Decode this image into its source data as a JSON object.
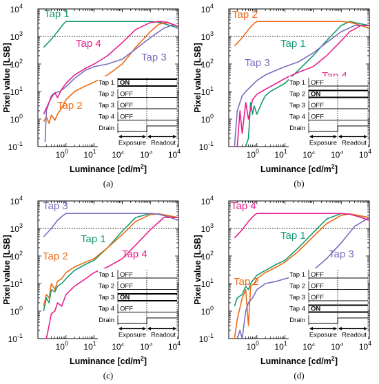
{
  "figure": {
    "panels": [
      {
        "sublabel": "(a)",
        "ylabel": "Pixel value [LSB]",
        "xlabel_main": "Luminance [cd/m",
        "xlabel_sup": "2",
        "xlabel_close": "]",
        "series_labels": [
          "Tap 1",
          "Tap 4",
          "Tap 3",
          "Tap 2"
        ],
        "inset": {
          "rows": [
            {
              "name": "Tap 1",
              "state": "ON"
            },
            {
              "name": "Tap 2",
              "state": "OFF"
            },
            {
              "name": "Tap 3",
              "state": "OFF"
            },
            {
              "name": "Tap 4",
              "state": "OFF"
            },
            {
              "name": "Drain",
              "state": ""
            }
          ],
          "exposure": "Exposure",
          "readout": "Readout"
        }
      },
      {
        "sublabel": "(b)",
        "ylabel": "Pixel value [LSB]",
        "xlabel_main": "Luminance [cd/m",
        "xlabel_sup": "2",
        "xlabel_close": "]",
        "series_labels": [
          "Tap 2",
          "Tap 1",
          "Tap 3",
          "Tap 4"
        ],
        "inset": {
          "rows": [
            {
              "name": "Tap 1",
              "state": "OFF"
            },
            {
              "name": "Tap 2",
              "state": "ON"
            },
            {
              "name": "Tap 3",
              "state": "OFF"
            },
            {
              "name": "Tap 4",
              "state": "OFF"
            },
            {
              "name": "Drain",
              "state": ""
            }
          ],
          "exposure": "Exposure",
          "readout": "Readout"
        }
      },
      {
        "sublabel": "(c)",
        "ylabel": "Pixel value [LSB]",
        "xlabel_main": "Luminance [cd/m",
        "xlabel_sup": "2",
        "xlabel_close": "]",
        "series_labels": [
          "Tap 3",
          "Tap 1",
          "Tap 2",
          "Tap 4"
        ],
        "inset": {
          "rows": [
            {
              "name": "Tap 1",
              "state": "OFF"
            },
            {
              "name": "Tap 2",
              "state": "OFF"
            },
            {
              "name": "Tap 3",
              "state": "ON"
            },
            {
              "name": "Tap 4",
              "state": "OFF"
            },
            {
              "name": "Drain",
              "state": ""
            }
          ],
          "exposure": "Exposure",
          "readout": "Readout"
        }
      },
      {
        "sublabel": "(d)",
        "ylabel": "Pixel value [LSB]",
        "xlabel_main": "Luminance [cd/m",
        "xlabel_sup": "2",
        "xlabel_close": "]",
        "series_labels": [
          "Tap 4",
          "Tap 1",
          "Tap 2",
          "Tap 3"
        ],
        "inset": {
          "rows": [
            {
              "name": "Tap 1",
              "state": "OFF"
            },
            {
              "name": "Tap 2",
              "state": "OFF"
            },
            {
              "name": "Tap 3",
              "state": "OFF"
            },
            {
              "name": "Tap 4",
              "state": "ON"
            },
            {
              "name": "Drain",
              "state": ""
            }
          ],
          "exposure": "Exposure",
          "readout": "Readout"
        }
      }
    ]
  },
  "chart_data": [
    {
      "type": "line",
      "xscale": "log",
      "yscale": "log",
      "xlim": [
        0.1,
        10000
      ],
      "ylim": [
        0.1,
        10000
      ],
      "x_ticks": [
        "10",
        "10",
        "10",
        "10",
        "10"
      ],
      "x_tick_exponents": [
        "0",
        "1",
        "2",
        "3",
        "4"
      ],
      "y_ticks": [
        "10",
        "10",
        "10",
        "10",
        "10",
        "10"
      ],
      "y_tick_exponents": [
        "-1",
        "0",
        "1",
        "2",
        "3",
        "4"
      ],
      "saturation_line": 1000,
      "series": [
        {
          "name": "Tap 1",
          "color": "#129a73",
          "role": "on",
          "x": [
            0.16,
            0.3,
            0.5,
            0.8,
            1,
            2,
            10,
            100,
            1000,
            2000,
            4000,
            10000
          ],
          "y": [
            400,
            800,
            1500,
            2800,
            3500,
            3500,
            3500,
            3500,
            3500,
            3300,
            2700,
            2000
          ]
        },
        {
          "name": "Tap 2",
          "color": "#ee6a12",
          "role": "off",
          "x": [
            0.16,
            0.2,
            0.25,
            0.3,
            0.4,
            0.5,
            0.7,
            1,
            2,
            5,
            10,
            30,
            100,
            300,
            1000,
            2000,
            4000,
            10000
          ],
          "y": [
            0.8,
            1.2,
            0.7,
            1.4,
            0.9,
            1.5,
            2.5,
            5,
            10,
            16,
            22,
            40,
            100,
            400,
            1500,
            2800,
            3200,
            2300
          ]
        },
        {
          "name": "Tap 3",
          "color": "#7b6bbd",
          "role": "off",
          "x": [
            0.18,
            0.2,
            0.25,
            0.3,
            0.4,
            0.6,
            1,
            2,
            5,
            10,
            30,
            100,
            300,
            1000,
            3000,
            6000,
            10000
          ],
          "y": [
            0.15,
            2,
            4,
            7,
            9,
            10,
            15,
            30,
            60,
            80,
            100,
            150,
            350,
            900,
            2000,
            2600,
            2300
          ]
        },
        {
          "name": "Tap 4",
          "color": "#e81e8c",
          "role": "off",
          "x": [
            0.16,
            0.2,
            0.25,
            0.3,
            0.4,
            0.5,
            0.7,
            1,
            2,
            5,
            10,
            30,
            100,
            300,
            1000,
            2000,
            4000,
            10000
          ],
          "y": [
            1.5,
            2.5,
            4,
            6,
            9,
            6,
            12,
            20,
            40,
            70,
            100,
            200,
            600,
            1800,
            3200,
            3500,
            3300,
            2300
          ]
        }
      ]
    },
    {
      "type": "line",
      "xscale": "log",
      "yscale": "log",
      "xlim": [
        0.1,
        10000
      ],
      "ylim": [
        0.1,
        10000
      ],
      "x_ticks": [
        "10",
        "10",
        "10",
        "10",
        "10"
      ],
      "x_tick_exponents": [
        "0",
        "1",
        "2",
        "3",
        "4"
      ],
      "y_ticks": [
        "10",
        "10",
        "10",
        "10",
        "10",
        "10"
      ],
      "y_tick_exponents": [
        "-1",
        "0",
        "1",
        "2",
        "3",
        "4"
      ],
      "saturation_line": 1000,
      "series": [
        {
          "name": "Tap 1",
          "color": "#129a73",
          "role": "off",
          "x": [
            0.4,
            0.5,
            0.6,
            0.7,
            0.8,
            1,
            1.5,
            2,
            3,
            10,
            30,
            100,
            300,
            1000,
            2000,
            4000,
            10000
          ],
          "y": [
            0.1,
            0.2,
            4,
            1.5,
            3,
            1.5,
            4,
            7,
            10,
            20,
            60,
            200,
            700,
            2500,
            3500,
            3000,
            2500
          ]
        },
        {
          "name": "Tap 2",
          "color": "#ee6a12",
          "role": "on",
          "x": [
            0.16,
            0.3,
            0.5,
            0.8,
            1,
            2,
            10,
            100,
            1000,
            2000,
            4000,
            10000
          ],
          "y": [
            450,
            900,
            1800,
            3000,
            3500,
            3500,
            3500,
            3500,
            3500,
            3300,
            2700,
            2000
          ]
        },
        {
          "name": "Tap 3",
          "color": "#7b6bbd",
          "role": "off",
          "x": [
            0.16,
            0.2,
            0.25,
            0.3,
            0.4,
            0.6,
            1,
            2,
            5,
            10,
            30,
            100,
            300,
            1000,
            3000,
            10000
          ],
          "y": [
            0.1,
            2,
            4,
            7,
            10,
            15,
            25,
            40,
            60,
            80,
            120,
            250,
            600,
            1500,
            2500,
            2500
          ]
        },
        {
          "name": "Tap 4",
          "color": "#e81e8c",
          "role": "off",
          "x": [
            0.2,
            0.25,
            0.3,
            0.4,
            0.5,
            0.7,
            1,
            2,
            5,
            10,
            30,
            100,
            300,
            1000,
            2000,
            5000,
            10000
          ],
          "y": [
            0.1,
            2,
            0.3,
            4,
            1,
            5,
            8,
            12,
            20,
            30,
            50,
            80,
            200,
            700,
            1500,
            2500,
            2500
          ]
        }
      ]
    },
    {
      "type": "line",
      "xscale": "log",
      "yscale": "log",
      "xlim": [
        0.1,
        10000
      ],
      "ylim": [
        0.1,
        10000
      ],
      "x_ticks": [
        "10",
        "10",
        "10",
        "10",
        "10"
      ],
      "x_tick_exponents": [
        "0",
        "1",
        "2",
        "3",
        "4"
      ],
      "y_ticks": [
        "10",
        "10",
        "10",
        "10",
        "10",
        "10"
      ],
      "y_tick_exponents": [
        "-1",
        "0",
        "1",
        "2",
        "3",
        "4"
      ],
      "saturation_line": 1000,
      "series": [
        {
          "name": "Tap 1",
          "color": "#129a73",
          "role": "off",
          "x": [
            0.16,
            0.2,
            0.25,
            0.3,
            0.4,
            0.5,
            0.7,
            1,
            2,
            5,
            10,
            30,
            100,
            300,
            1000,
            2000,
            10000
          ],
          "y": [
            1,
            3,
            2,
            6,
            5,
            8,
            10,
            15,
            30,
            50,
            70,
            200,
            800,
            2500,
            3500,
            3300,
            2500
          ]
        },
        {
          "name": "Tap 2",
          "color": "#ee6a12",
          "role": "off",
          "x": [
            0.16,
            0.2,
            0.25,
            0.3,
            0.4,
            0.5,
            0.7,
            1,
            2,
            5,
            10,
            30,
            100,
            300,
            1000,
            2000,
            10000
          ],
          "y": [
            1.5,
            4,
            3,
            10,
            6,
            12,
            15,
            25,
            40,
            60,
            80,
            200,
            600,
            1800,
            3200,
            3400,
            2500
          ]
        },
        {
          "name": "Tap 3",
          "color": "#7b6bbd",
          "role": "on",
          "x": [
            0.16,
            0.3,
            0.5,
            0.8,
            1,
            2,
            10,
            100,
            1000,
            2000,
            4000,
            10000
          ],
          "y": [
            500,
            1000,
            2000,
            3000,
            3500,
            3500,
            3500,
            3500,
            3500,
            3300,
            2700,
            2000
          ]
        },
        {
          "name": "Tap 4",
          "color": "#e81e8c",
          "role": "off",
          "x": [
            0.2,
            0.25,
            0.3,
            0.4,
            0.5,
            0.7,
            1,
            2,
            5,
            10,
            30,
            100,
            300,
            1000,
            3000,
            10000
          ],
          "y": [
            0.1,
            0.3,
            0.8,
            1,
            2,
            1.5,
            4,
            8,
            15,
            25,
            40,
            80,
            250,
            900,
            2500,
            2500
          ]
        }
      ]
    },
    {
      "type": "line",
      "xscale": "log",
      "yscale": "log",
      "xlim": [
        0.1,
        10000
      ],
      "ylim": [
        0.1,
        10000
      ],
      "x_ticks": [
        "10",
        "10",
        "10",
        "10",
        "10"
      ],
      "x_tick_exponents": [
        "0",
        "1",
        "2",
        "3",
        "4"
      ],
      "y_ticks": [
        "10",
        "10",
        "10",
        "10",
        "10",
        "10"
      ],
      "y_tick_exponents": [
        "-1",
        "0",
        "1",
        "2",
        "3",
        "4"
      ],
      "saturation_line": 1000,
      "series": [
        {
          "name": "Tap 1",
          "color": "#129a73",
          "role": "off",
          "x": [
            0.16,
            0.2,
            0.3,
            0.4,
            0.5,
            0.6,
            0.8,
            1,
            2,
            5,
            10,
            30,
            100,
            300,
            1000,
            2000,
            10000
          ],
          "y": [
            1.5,
            3,
            4,
            8,
            6,
            10,
            15,
            20,
            30,
            50,
            70,
            200,
            700,
            2200,
            3500,
            3300,
            2500
          ]
        },
        {
          "name": "Tap 2",
          "color": "#ee6a12",
          "role": "off",
          "x": [
            0.16,
            0.2,
            0.3,
            0.4,
            0.5,
            0.6,
            0.8,
            1,
            2,
            5,
            10,
            30,
            100,
            300,
            1000,
            2000,
            10000
          ],
          "y": [
            0.1,
            0.5,
            3,
            6,
            0.3,
            8,
            10,
            15,
            25,
            40,
            60,
            150,
            500,
            1500,
            3000,
            3400,
            2500
          ]
        },
        {
          "name": "Tap 3",
          "color": "#7b6bbd",
          "role": "off",
          "x": [
            0.2,
            0.25,
            0.3,
            0.4,
            0.5,
            0.7,
            1,
            2,
            5,
            10,
            30,
            100,
            300,
            1000,
            3000,
            10000
          ],
          "y": [
            0.1,
            0.2,
            0.1,
            1,
            2,
            3,
            6,
            10,
            12,
            15,
            20,
            30,
            80,
            300,
            1200,
            2500
          ]
        },
        {
          "name": "Tap 4",
          "color": "#e81e8c",
          "role": "on",
          "x": [
            0.16,
            0.3,
            0.5,
            0.8,
            1,
            2,
            10,
            100,
            1000,
            2000,
            4000,
            10000
          ],
          "y": [
            450,
            900,
            1800,
            3000,
            3500,
            3500,
            3500,
            3500,
            3500,
            3300,
            2700,
            2000
          ]
        }
      ]
    }
  ]
}
